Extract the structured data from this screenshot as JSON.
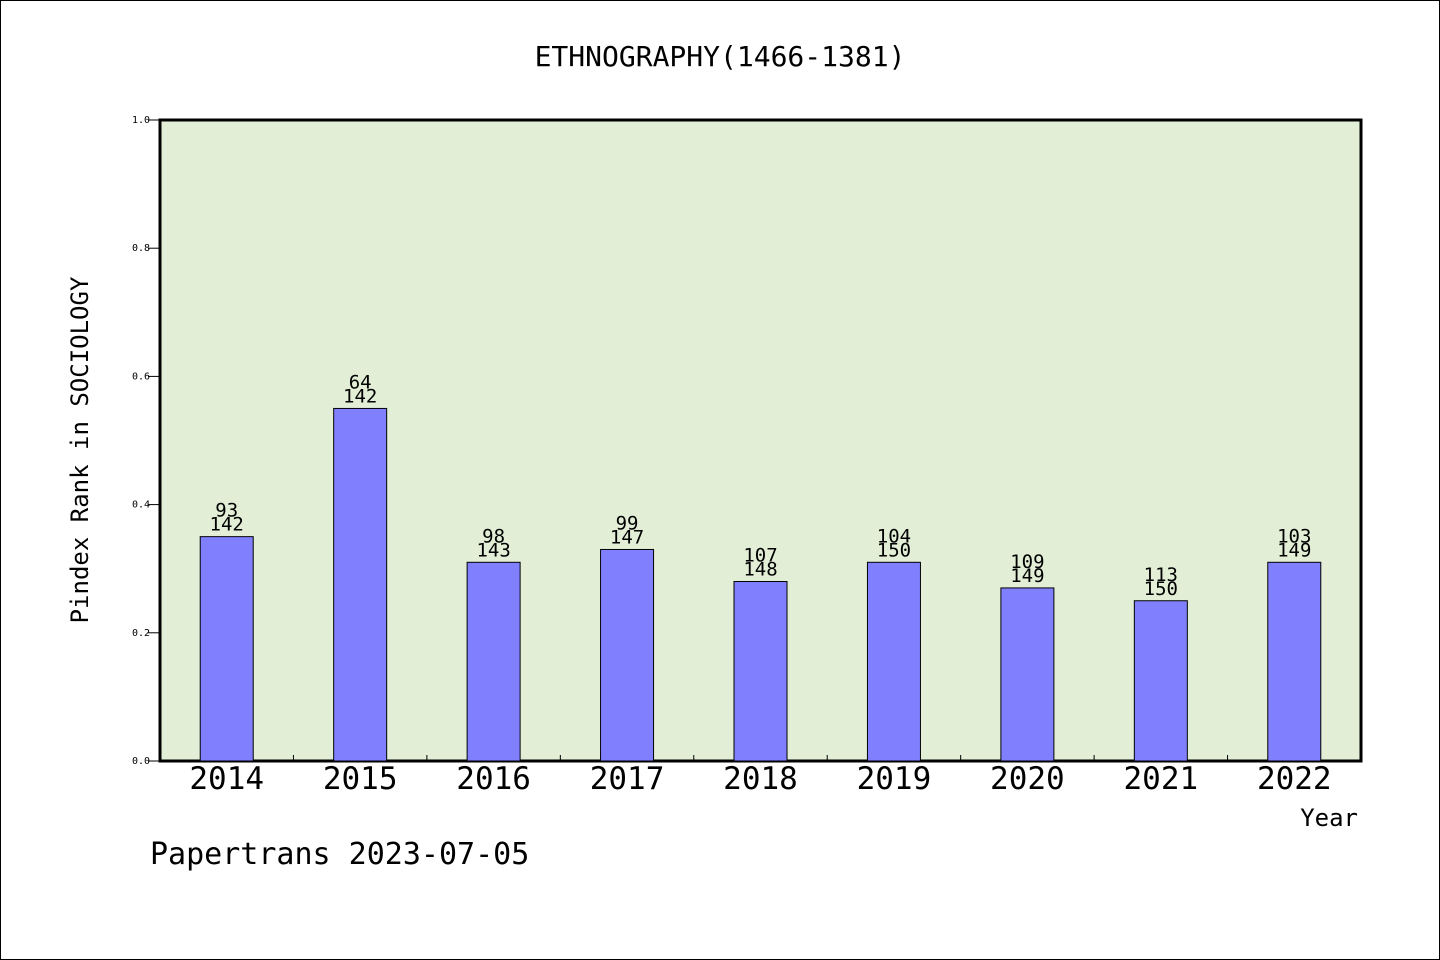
{
  "chart_data": {
    "type": "bar",
    "title": "ETHNOGRAPHY(1466-1381)",
    "xlabel": "Year",
    "ylabel": "Pindex Rank in SOCIOLOGY",
    "ylim": [
      0,
      1.0
    ],
    "yticks": [
      "0.0",
      "0.2",
      "0.4",
      "0.6",
      "0.8",
      "1.0"
    ],
    "categories": [
      "2014",
      "2015",
      "2016",
      "2017",
      "2018",
      "2019",
      "2020",
      "2021",
      "2022"
    ],
    "values": [
      0.35,
      0.55,
      0.31,
      0.33,
      0.28,
      0.31,
      0.27,
      0.25,
      0.31
    ],
    "rank": [
      "93",
      "64",
      "98",
      "99",
      "107",
      "104",
      "109",
      "113",
      "103"
    ],
    "total": [
      "142",
      "142",
      "143",
      "147",
      "148",
      "150",
      "149",
      "150",
      "149"
    ],
    "plot_background": "#e2efd6",
    "bar_color": "#8080ff",
    "grid": false
  },
  "footer": "Papertrans 2023-07-05"
}
